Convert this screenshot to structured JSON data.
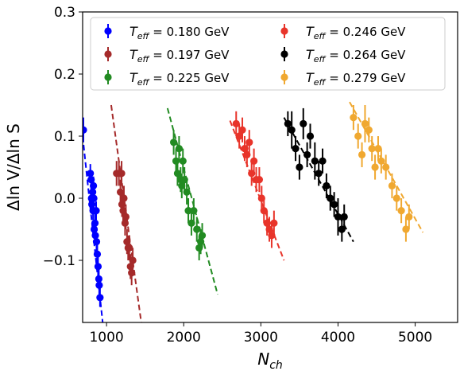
{
  "chart_data": {
    "type": "scatter",
    "title": "",
    "xlabel": "N",
    "xlabel_sub": "ch",
    "ylabel": "Δln V/Δln S",
    "xlim": [
      690,
      5550
    ],
    "ylim": [
      -0.2,
      0.3
    ],
    "xticks": [
      1000,
      2000,
      3000,
      4000,
      5000
    ],
    "xtick_labels": [
      "1000",
      "2000",
      "3000",
      "4000",
      "5000"
    ],
    "yticks": [
      -0.1,
      0.0,
      0.1,
      0.2,
      0.3
    ],
    "ytick_labels": [
      "−0.1",
      "0.0",
      "0.1",
      "0.2",
      "0.3"
    ],
    "grid": false,
    "legend_position": "top",
    "legend_columns": 2,
    "series": [
      {
        "name": "T",
        "name_sub": "eff",
        "value_text": " = 0.180 GeV",
        "color": "#0000ff",
        "x": [
          700,
          790,
          800,
          805,
          810,
          820,
          825,
          830,
          835,
          840,
          850,
          855,
          865,
          870,
          880,
          890,
          900,
          905,
          915
        ],
        "y": [
          0.11,
          0.04,
          0.03,
          0.0,
          -0.01,
          0.01,
          -0.02,
          0.02,
          0.0,
          -0.05,
          -0.04,
          -0.06,
          -0.02,
          -0.07,
          -0.09,
          -0.11,
          -0.13,
          -0.14,
          -0.16
        ],
        "yerr": [
          0.02,
          0.015,
          0.015,
          0.015,
          0.015,
          0.015,
          0.015,
          0.015,
          0.015,
          0.015,
          0.015,
          0.015,
          0.015,
          0.015,
          0.015,
          0.015,
          0.015,
          0.015,
          0.015
        ],
        "fit": [
          [
            690,
            0.1
          ],
          [
            950,
            -0.2
          ]
        ]
      },
      {
        "name": "T",
        "name_sub": "eff",
        "value_text": " = 0.197 GeV",
        "color": "#a52a2a",
        "x": [
          1130,
          1160,
          1180,
          1195,
          1200,
          1215,
          1225,
          1240,
          1250,
          1265,
          1280,
          1295,
          1310,
          1325,
          1340
        ],
        "y": [
          0.04,
          0.04,
          0.01,
          0.04,
          -0.01,
          -0.02,
          0.0,
          -0.04,
          -0.03,
          -0.07,
          -0.08,
          -0.08,
          -0.11,
          -0.12,
          -0.1
        ],
        "yerr": [
          0.02,
          0.02,
          0.02,
          0.02,
          0.02,
          0.02,
          0.02,
          0.02,
          0.02,
          0.02,
          0.02,
          0.02,
          0.02,
          0.02,
          0.02
        ],
        "fit": [
          [
            1060,
            0.15
          ],
          [
            1450,
            -0.2
          ]
        ]
      },
      {
        "name": "T",
        "name_sub": "eff",
        "value_text": " = 0.225 GeV",
        "color": "#228b22",
        "x": [
          1870,
          1900,
          1920,
          1940,
          1960,
          1975,
          1990,
          2010,
          2040,
          2060,
          2100,
          2130,
          2170,
          2200,
          2220,
          2240
        ],
        "y": [
          0.09,
          0.06,
          0.04,
          0.08,
          0.03,
          0.02,
          0.06,
          0.03,
          0.01,
          -0.02,
          -0.04,
          -0.02,
          -0.05,
          -0.08,
          -0.07,
          -0.06
        ],
        "yerr": [
          0.02,
          0.02,
          0.02,
          0.02,
          0.02,
          0.02,
          0.02,
          0.02,
          0.02,
          0.02,
          0.02,
          0.02,
          0.02,
          0.02,
          0.02,
          0.02
        ],
        "fit": [
          [
            1790,
            0.145
          ],
          [
            2440,
            -0.155
          ]
        ]
      },
      {
        "name": "T",
        "name_sub": "eff",
        "value_text": " = 0.246 GeV",
        "color": "#e8342a",
        "x": [
          2680,
          2720,
          2760,
          2790,
          2820,
          2850,
          2880,
          2910,
          2940,
          2980,
          3010,
          3040,
          3080,
          3110,
          3140,
          3170
        ],
        "y": [
          0.12,
          0.1,
          0.11,
          0.08,
          0.07,
          0.09,
          0.04,
          0.06,
          0.03,
          0.03,
          0.0,
          -0.02,
          -0.04,
          -0.05,
          -0.06,
          -0.04
        ],
        "yerr": [
          0.02,
          0.02,
          0.02,
          0.02,
          0.02,
          0.02,
          0.02,
          0.02,
          0.02,
          0.02,
          0.02,
          0.02,
          0.02,
          0.02,
          0.02,
          0.02
        ],
        "fit": [
          [
            2600,
            0.125
          ],
          [
            3300,
            -0.1
          ]
        ]
      },
      {
        "name": "T",
        "name_sub": "eff",
        "value_text": " = 0.264 GeV",
        "color": "#000000",
        "x": [
          3350,
          3400,
          3450,
          3500,
          3550,
          3600,
          3640,
          3700,
          3750,
          3800,
          3850,
          3900,
          3950,
          4000,
          4050,
          4080
        ],
        "y": [
          0.12,
          0.11,
          0.08,
          0.05,
          0.12,
          0.07,
          0.1,
          0.06,
          0.04,
          0.06,
          0.02,
          0.0,
          -0.01,
          -0.03,
          -0.05,
          -0.03
        ],
        "yerr": [
          0.02,
          0.03,
          0.02,
          0.02,
          0.025,
          0.02,
          0.02,
          0.03,
          0.02,
          0.02,
          0.02,
          0.02,
          0.02,
          0.03,
          0.02,
          0.02
        ],
        "fit": [
          [
            3300,
            0.13
          ],
          [
            4200,
            -0.07
          ]
        ]
      },
      {
        "name": "T",
        "name_sub": "eff",
        "value_text": " = 0.279 GeV",
        "color": "#f0a830",
        "x": [
          4200,
          4260,
          4310,
          4350,
          4400,
          4440,
          4480,
          4520,
          4560,
          4620,
          4700,
          4760,
          4820,
          4880,
          4920
        ],
        "y": [
          0.13,
          0.1,
          0.07,
          0.12,
          0.11,
          0.08,
          0.05,
          0.08,
          0.06,
          0.05,
          0.02,
          0.0,
          -0.02,
          -0.05,
          -0.03
        ],
        "yerr": [
          0.02,
          0.02,
          0.02,
          0.03,
          0.02,
          0.02,
          0.02,
          0.02,
          0.02,
          0.02,
          0.02,
          0.02,
          0.02,
          0.02,
          0.02
        ],
        "fit": [
          [
            4150,
            0.155
          ],
          [
            5100,
            -0.055
          ]
        ]
      }
    ]
  }
}
